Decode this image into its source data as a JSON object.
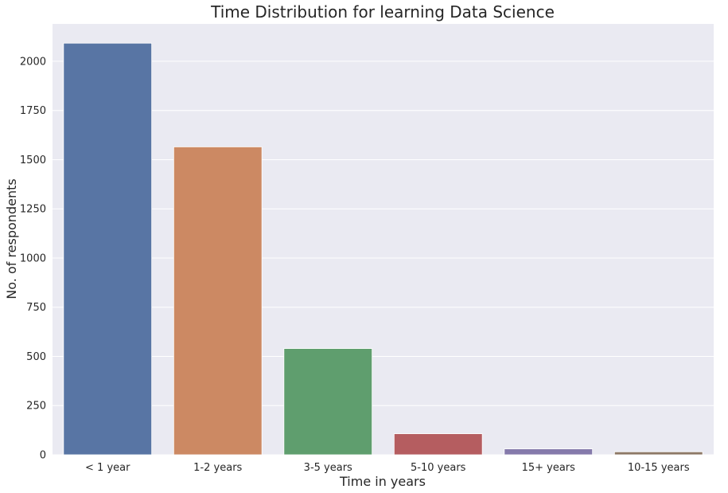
{
  "chart_data": {
    "type": "bar",
    "title": "Time Distribution for learning Data Science",
    "xlabel": "Time in years",
    "ylabel": "No. of respondents",
    "categories": [
      "< 1 year",
      "1-2 years",
      "3-5 years",
      "5-10 years",
      "15+ years",
      "10-15 years"
    ],
    "values": [
      2092,
      1565,
      540,
      107,
      30,
      15
    ],
    "ylim": [
      0,
      2190
    ],
    "yticks": [
      0,
      250,
      500,
      750,
      1000,
      1250,
      1500,
      1750,
      2000
    ],
    "grid": true,
    "colors": [
      "#5875a4",
      "#cc8963",
      "#5f9e6e",
      "#b55d60",
      "#857aab",
      "#8d7866"
    ],
    "background": "#eaeaf2"
  }
}
